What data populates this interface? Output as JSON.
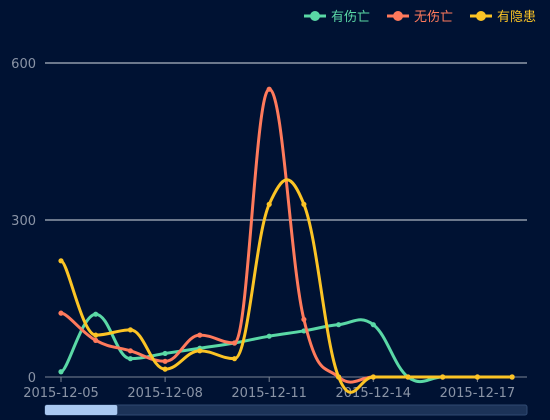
{
  "chart_data": {
    "type": "line",
    "x": [
      "2015-12-05",
      "2015-12-06",
      "2015-12-07",
      "2015-12-08",
      "2015-12-09",
      "2015-12-10",
      "2015-12-11",
      "2015-12-12",
      "2015-12-13",
      "2015-12-14",
      "2015-12-15",
      "2015-12-16",
      "2015-12-17",
      "2015-12-18"
    ],
    "x_tick_labels": [
      "2015-12-05",
      "2015-12-08",
      "2015-12-11",
      "2015-12-14",
      "2015-12-17"
    ],
    "y_ticks": [
      "0",
      "300",
      "600"
    ],
    "ylim": [
      0,
      600
    ],
    "grid": true,
    "legend": "top-right",
    "series": [
      {
        "name": "有伤亡",
        "color": "#5ad8a6",
        "values": [
          10,
          120,
          35,
          45,
          55,
          65,
          78,
          88,
          100,
          100,
          0,
          0,
          0,
          0
        ]
      },
      {
        "name": "无伤亡",
        "color": "#ff7a5c",
        "values": [
          122,
          70,
          50,
          30,
          80,
          65,
          550,
          110,
          0,
          0,
          0,
          0,
          0,
          0
        ]
      },
      {
        "name": "有隐患",
        "color": "#fcc425",
        "values": [
          222,
          80,
          90,
          15,
          50,
          35,
          330,
          330,
          0,
          0,
          0,
          0,
          0,
          0
        ]
      }
    ],
    "zoom_range_percent": [
      0,
      15
    ]
  }
}
